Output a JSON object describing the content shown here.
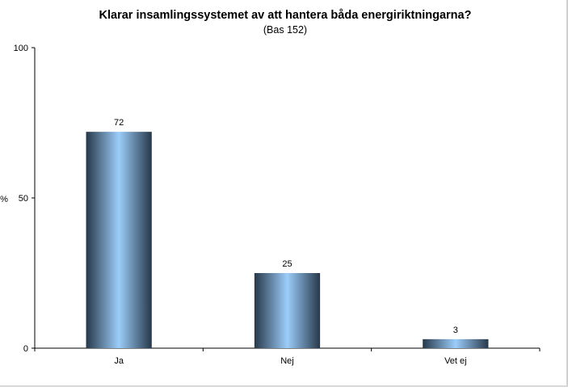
{
  "chart_data": {
    "type": "bar",
    "title": "Klarar insamlingssystemet av att hantera båda energiriktningarna?",
    "subtitle": "(Bas 152)",
    "ylabel": "%",
    "xlabel": "",
    "categories": [
      "Ja",
      "Nej",
      "Vet ej"
    ],
    "values": [
      72,
      25,
      3
    ],
    "data_labels": [
      "72",
      "25",
      "3"
    ],
    "ylim": [
      0,
      100
    ],
    "yticks": [
      0,
      50,
      100
    ],
    "grid": false,
    "legend": "none",
    "colors": {
      "bar_edge": "#27384a",
      "bar_center": "#9ccdfa",
      "axis": "#000000"
    }
  }
}
